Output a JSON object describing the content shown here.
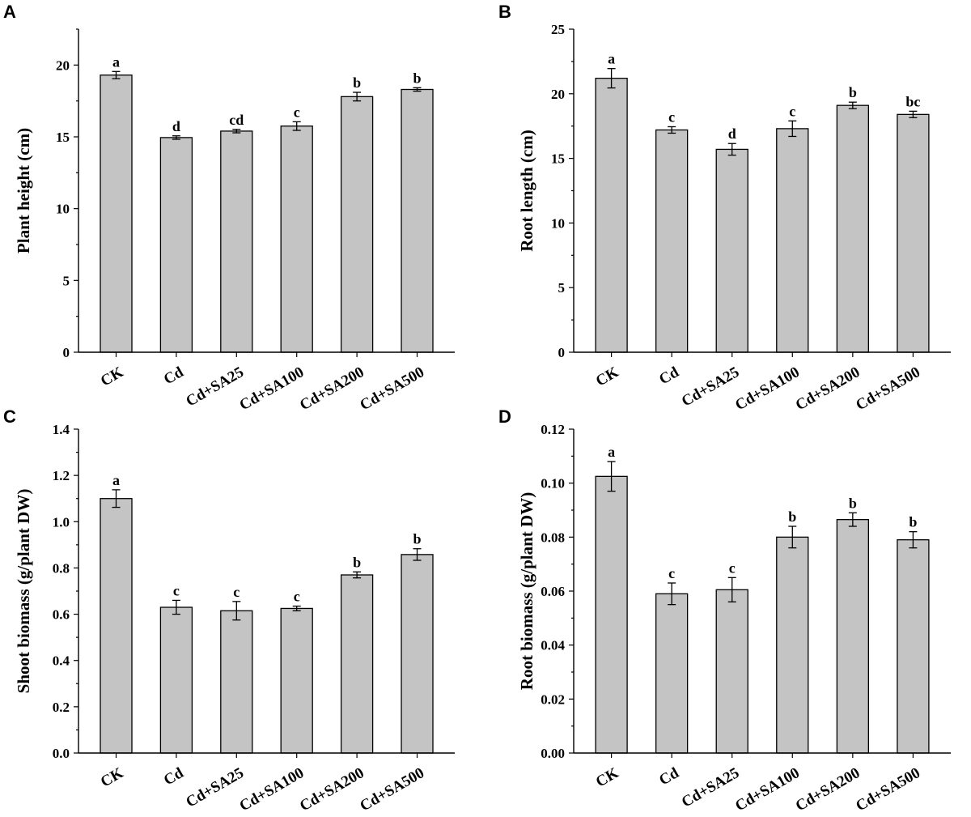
{
  "chart_data": [
    {
      "type": "bar",
      "panel": "A",
      "categories": [
        "CK",
        "Cd",
        "Cd+SA25",
        "Cd+SA100",
        "Cd+SA200",
        "Cd+SA500"
      ],
      "values": [
        19.3,
        14.95,
        15.4,
        15.75,
        17.8,
        18.3
      ],
      "errors": [
        0.25,
        0.12,
        0.12,
        0.3,
        0.3,
        0.12
      ],
      "significance": [
        "a",
        "d",
        "cd",
        "c",
        "b",
        "b"
      ],
      "ylabel": "Plant height (cm)",
      "xlabel": "",
      "ylim": [
        0,
        22.5
      ],
      "yticks": [
        0,
        5,
        10,
        15,
        20
      ],
      "ytick_labels": [
        "0",
        "5",
        "10",
        "15",
        "20"
      ]
    },
    {
      "type": "bar",
      "panel": "B",
      "categories": [
        "CK",
        "Cd",
        "Cd+SA25",
        "Cd+SA100",
        "Cd+SA200",
        "Cd+SA500"
      ],
      "values": [
        21.2,
        17.2,
        15.7,
        17.3,
        19.1,
        18.4
      ],
      "errors": [
        0.75,
        0.25,
        0.45,
        0.6,
        0.25,
        0.25
      ],
      "significance": [
        "a",
        "c",
        "d",
        "c",
        "b",
        "bc"
      ],
      "ylabel": "Root length (cm)",
      "xlabel": "",
      "ylim": [
        0,
        25
      ],
      "yticks": [
        0,
        5,
        10,
        15,
        20,
        25
      ],
      "ytick_labels": [
        "0",
        "5",
        "10",
        "15",
        "20",
        "25"
      ]
    },
    {
      "type": "bar",
      "panel": "C",
      "categories": [
        "CK",
        "Cd",
        "Cd+SA25",
        "Cd+SA100",
        "Cd+SA200",
        "Cd+SA500"
      ],
      "values": [
        1.1,
        0.63,
        0.615,
        0.625,
        0.77,
        0.858
      ],
      "errors": [
        0.038,
        0.03,
        0.04,
        0.01,
        0.013,
        0.025
      ],
      "significance": [
        "a",
        "c",
        "c",
        "c",
        "b",
        "b"
      ],
      "ylabel": "Shoot biomass (g/plant DW)",
      "xlabel": "",
      "ylim": [
        0,
        1.4
      ],
      "yticks": [
        0,
        0.2,
        0.4,
        0.6,
        0.8,
        1.0,
        1.2,
        1.4
      ],
      "ytick_labels": [
        "0.0",
        "0.2",
        "0.4",
        "0.6",
        "0.8",
        "1.0",
        "1.2",
        "1.4"
      ]
    },
    {
      "type": "bar",
      "panel": "D",
      "categories": [
        "CK",
        "Cd",
        "Cd+SA25",
        "Cd+SA100",
        "Cd+SA200",
        "Cd+SA500"
      ],
      "values": [
        0.1025,
        0.059,
        0.0605,
        0.08,
        0.0865,
        0.079
      ],
      "errors": [
        0.0055,
        0.004,
        0.0045,
        0.004,
        0.0025,
        0.003
      ],
      "significance": [
        "a",
        "c",
        "c",
        "b",
        "b",
        "b"
      ],
      "ylabel": "Root biomass (g/plant DW)",
      "xlabel": "",
      "ylim": [
        0,
        0.12
      ],
      "yticks": [
        0,
        0.02,
        0.04,
        0.06,
        0.08,
        0.1,
        0.12
      ],
      "ytick_labels": [
        "0.00",
        "0.02",
        "0.04",
        "0.06",
        "0.08",
        "0.10",
        "0.12"
      ]
    }
  ]
}
